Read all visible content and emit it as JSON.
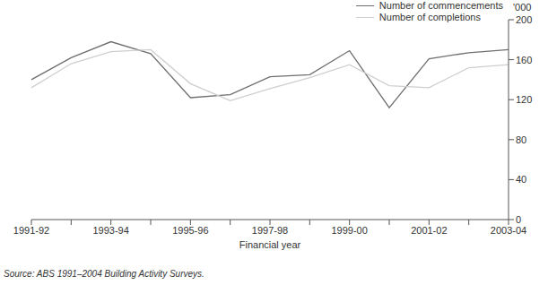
{
  "chart_data": {
    "type": "line",
    "x_label": "Financial year",
    "y_label": "'000",
    "annotations": [
      "Source: ABS 1991–2004 Building Activity Surveys."
    ],
    "categories": [
      "1991-92",
      null,
      "1993-94",
      null,
      "1995-96",
      null,
      "1997-98",
      null,
      "1999-00",
      null,
      "2001-02",
      null,
      "2003-04"
    ],
    "series": [
      {
        "name": "Number of commencements",
        "color": "#6e6e6e",
        "values": [
          140,
          162,
          178,
          166,
          122,
          125,
          143,
          145,
          169,
          112,
          161,
          167,
          170
        ]
      },
      {
        "name": "Number of completions",
        "color": "#cfcfcf",
        "values": [
          132,
          156,
          168,
          170,
          136,
          119,
          131,
          142,
          155,
          134,
          132,
          152,
          155
        ]
      }
    ],
    "ylim": [
      0,
      200
    ],
    "yticks": [
      0,
      40,
      80,
      120,
      160,
      200
    ],
    "legend": "top right"
  }
}
